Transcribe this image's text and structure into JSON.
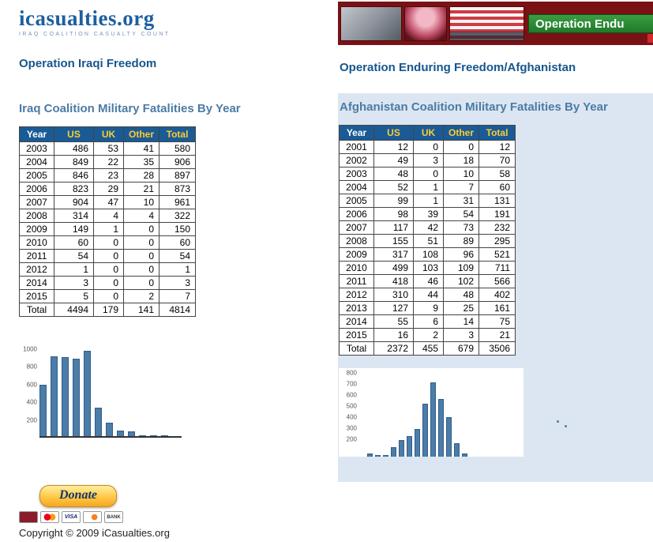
{
  "logo": {
    "title": "icasualties.org",
    "subtitle": "IRAQ COALITION CASUALTY COUNT"
  },
  "left": {
    "section_title": "Operation Iraqi Freedom",
    "table_title": "Iraq Coalition Military Fatalities By Year",
    "table": {
      "headers": [
        "Year",
        "US",
        "UK",
        "Other",
        "Total"
      ],
      "rows": [
        [
          "2003",
          "486",
          "53",
          "41",
          "580"
        ],
        [
          "2004",
          "849",
          "22",
          "35",
          "906"
        ],
        [
          "2005",
          "846",
          "23",
          "28",
          "897"
        ],
        [
          "2006",
          "823",
          "29",
          "21",
          "873"
        ],
        [
          "2007",
          "904",
          "47",
          "10",
          "961"
        ],
        [
          "2008",
          "314",
          "4",
          "4",
          "322"
        ],
        [
          "2009",
          "149",
          "1",
          "0",
          "150"
        ],
        [
          "2010",
          "60",
          "0",
          "0",
          "60"
        ],
        [
          "2011",
          "54",
          "0",
          "0",
          "54"
        ],
        [
          "2012",
          "1",
          "0",
          "0",
          "1"
        ],
        [
          "2014",
          "3",
          "0",
          "0",
          "3"
        ],
        [
          "2015",
          "5",
          "0",
          "2",
          "7"
        ]
      ],
      "total": [
        "Total",
        "4494",
        "179",
        "141",
        "4814"
      ]
    },
    "donate": {
      "label": "Donate"
    },
    "cards": [
      {
        "name": "amex-card-icon",
        "label": ""
      },
      {
        "name": "mastercard-icon",
        "label": ""
      },
      {
        "name": "visa-card-icon",
        "label": "VISA"
      },
      {
        "name": "discover-card-icon",
        "label": ""
      },
      {
        "name": "echeck-card-icon",
        "label": "BANK"
      }
    ],
    "copyright": "Copyright © 2009 iCasualties.org"
  },
  "right": {
    "banner_label": "Operation Endu",
    "banner_photos": [
      "helicopter-photo",
      "beret-photo",
      "flag-photo"
    ],
    "section_title": "Operation Enduring Freedom/Afghanistan",
    "table_title": "Afghanistan Coalition Military Fatalities By Year",
    "table": {
      "headers": [
        "Year",
        "US",
        "UK",
        "Other",
        "Total"
      ],
      "rows": [
        [
          "2001",
          "12",
          "0",
          "0",
          "12"
        ],
        [
          "2002",
          "49",
          "3",
          "18",
          "70"
        ],
        [
          "2003",
          "48",
          "0",
          "10",
          "58"
        ],
        [
          "2004",
          "52",
          "1",
          "7",
          "60"
        ],
        [
          "2005",
          "99",
          "1",
          "31",
          "131"
        ],
        [
          "2006",
          "98",
          "39",
          "54",
          "191"
        ],
        [
          "2007",
          "117",
          "42",
          "73",
          "232"
        ],
        [
          "2008",
          "155",
          "51",
          "89",
          "295"
        ],
        [
          "2009",
          "317",
          "108",
          "96",
          "521"
        ],
        [
          "2010",
          "499",
          "103",
          "109",
          "711"
        ],
        [
          "2011",
          "418",
          "46",
          "102",
          "566"
        ],
        [
          "2012",
          "310",
          "44",
          "48",
          "402"
        ],
        [
          "2013",
          "127",
          "9",
          "25",
          "161"
        ],
        [
          "2014",
          "55",
          "6",
          "14",
          "75"
        ],
        [
          "2015",
          "16",
          "2",
          "3",
          "21"
        ]
      ],
      "total": [
        "Total",
        "2372",
        "455",
        "679",
        "3506"
      ]
    }
  },
  "colors": {
    "accent_blue": "#17568c",
    "steel_blue": "#4c7ba5",
    "table_header_blue": "#1a5b96",
    "panel_blue": "#dce6f2",
    "banner_red": "#7a1114",
    "banner_green": "#2e7d32",
    "bar_blue": "#4c7ca8"
  },
  "chart_data": [
    {
      "type": "bar",
      "title": "",
      "xlabel": "",
      "ylabel": "",
      "categories": [
        "2003",
        "2004",
        "2005",
        "2006",
        "2007",
        "2008",
        "2009",
        "2010",
        "2011",
        "2012",
        "2014",
        "2015"
      ],
      "values": [
        580,
        906,
        897,
        873,
        961,
        322,
        150,
        60,
        54,
        1,
        3,
        7
      ],
      "ylim": [
        0,
        1000
      ],
      "yticks": [
        1000,
        800,
        600,
        400,
        200
      ],
      "grid": false,
      "legend": false,
      "bar_color": "#4c7ca8"
    },
    {
      "type": "bar",
      "title": "",
      "xlabel": "",
      "ylabel": "",
      "categories": [
        "2001",
        "2002",
        "2003",
        "2004",
        "2005",
        "2006",
        "2007",
        "2008",
        "2009",
        "2010",
        "2011",
        "2012",
        "2013",
        "2014",
        "2015"
      ],
      "values": [
        12,
        70,
        58,
        60,
        131,
        191,
        232,
        295,
        521,
        711,
        566,
        402,
        161,
        75,
        21
      ],
      "ylim": [
        0,
        800
      ],
      "yticks": [
        800,
        700,
        600,
        500,
        400,
        300,
        200
      ],
      "grid": false,
      "legend": false,
      "bar_color": "#4c7ca8"
    }
  ]
}
